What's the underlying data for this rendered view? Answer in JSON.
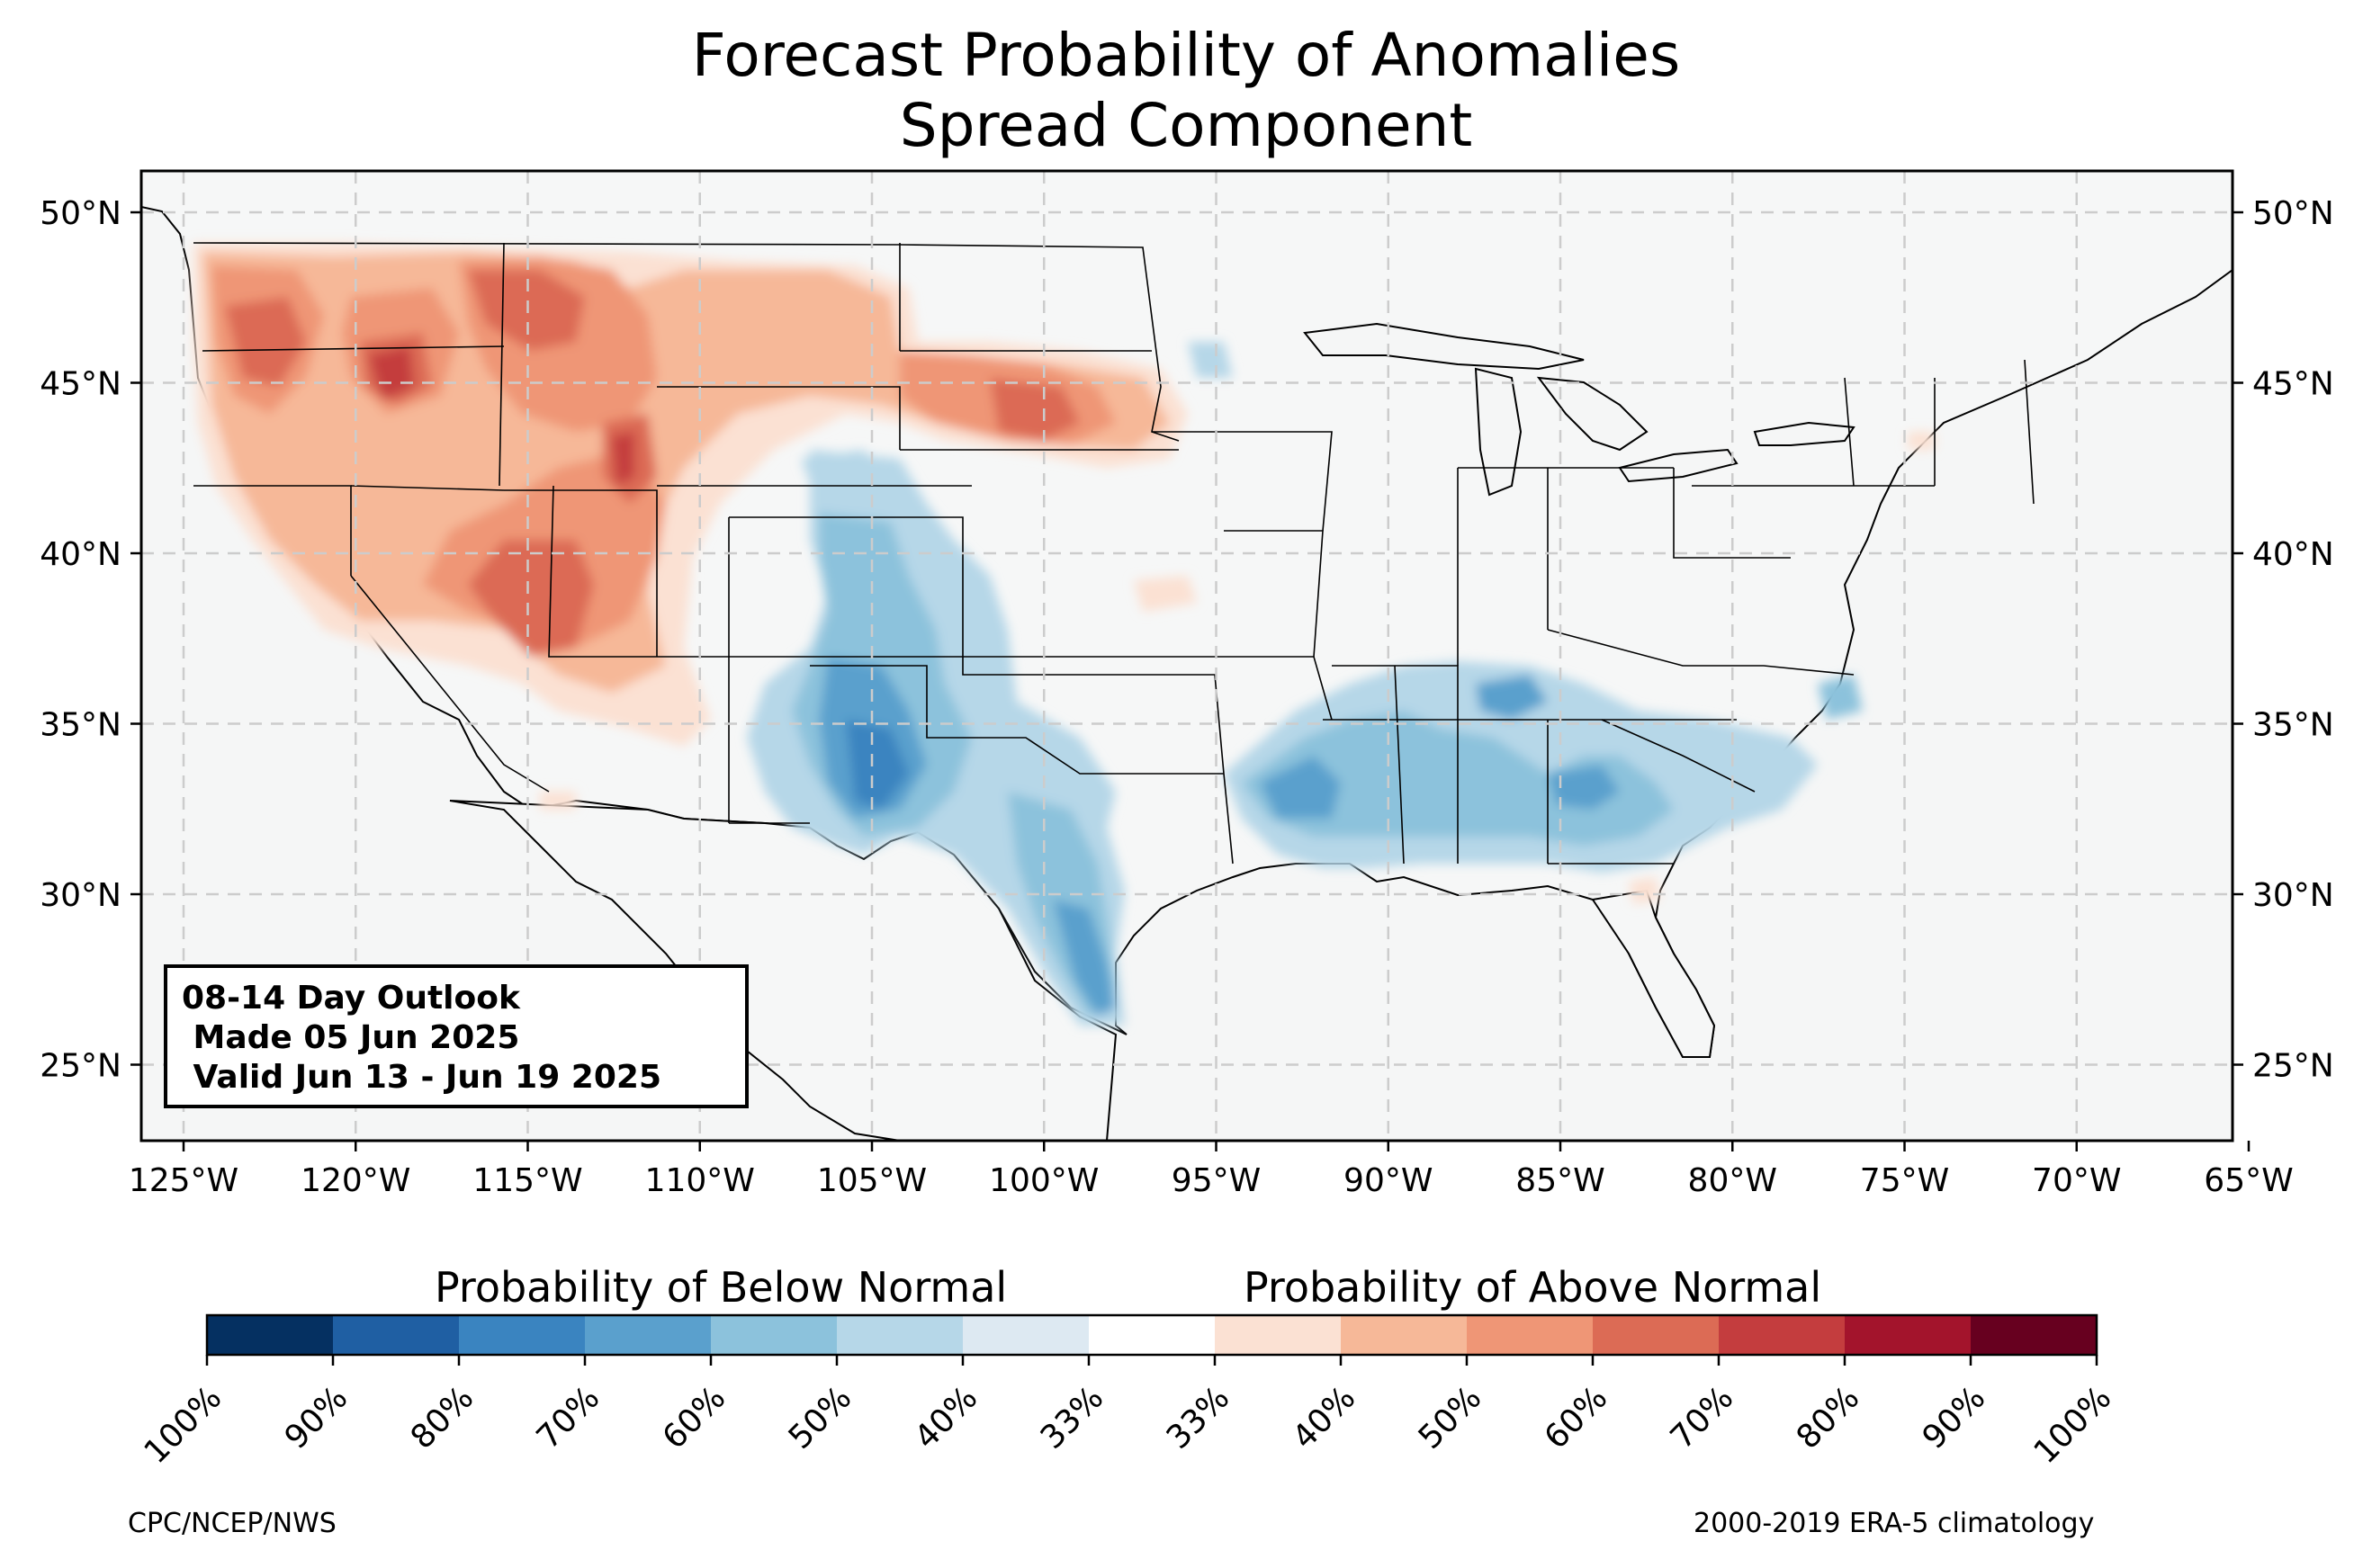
{
  "title": {
    "line1": "Forecast Probability of Anomalies",
    "line2": "Spread Component"
  },
  "info_box": {
    "line1": "08-14 Day Outlook",
    "line2": " Made 05 Jun 2025",
    "line3": " Valid Jun 13 - Jun 19 2025"
  },
  "axes": {
    "lon_ticks": [
      "125°W",
      "120°W",
      "115°W",
      "110°W",
      "105°W",
      "100°W",
      "95°W",
      "90°W",
      "85°W",
      "80°W",
      "75°W",
      "70°W",
      "65°W"
    ],
    "lat_ticks": [
      "50°N",
      "45°N",
      "40°N",
      "35°N",
      "30°N",
      "25°N"
    ]
  },
  "colorbar": {
    "below_heading": "Probability of Below Normal",
    "above_heading": "Probability of Above Normal",
    "tick_labels": [
      "100%",
      "90%",
      "80%",
      "70%",
      "60%",
      "50%",
      "40%",
      "33%",
      "33%",
      "40%",
      "50%",
      "60%",
      "70%",
      "80%",
      "90%",
      "100%"
    ],
    "colors": [
      "#053061",
      "#1f5fa3",
      "#3a84c0",
      "#5aa0cd",
      "#8cc2dc",
      "#b6d7e8",
      "#dde9f2",
      "#ffffff",
      "#fbe1d3",
      "#f6b898",
      "#ef9676",
      "#dc6b55",
      "#c43d3e",
      "#a3142c",
      "#67001f"
    ]
  },
  "credits": {
    "left": "CPC/NCEP/NWS",
    "right": "2000-2019 ERA-5 climatology"
  },
  "colors": {
    "land": "#f5f6f6",
    "ocean": "#f5f6f6",
    "frame": "#000000",
    "grid": "#cccccc",
    "below_light": "#b6d7e8",
    "below_mid": "#8cc2dc",
    "below_strong": "#5aa0cd",
    "below_deep": "#3a84c0",
    "above_light": "#fbe1d3",
    "above_mid": "#f6b898",
    "above_strong": "#ef9676",
    "above_deep": "#dc6b55",
    "above_deeper": "#c43d3e"
  }
}
